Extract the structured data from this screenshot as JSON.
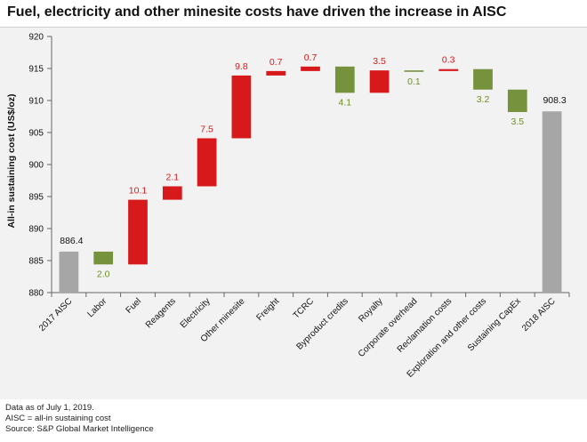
{
  "chart_data": {
    "type": "waterfall",
    "title": "Fuel, electricity and other minesite costs have driven the increase in AISC",
    "ylabel": "All-in sustaining cost (US$/oz)",
    "ylim": [
      880,
      920
    ],
    "yticks": [
      880,
      885,
      890,
      895,
      900,
      905,
      910,
      915,
      920
    ],
    "grid": false,
    "categories": [
      "2017 AISC",
      "Labor",
      "Fuel",
      "Reagents",
      "Electricity",
      "Other minesite",
      "Freight",
      "TCRC",
      "Byproduct credits",
      "Royalty",
      "Corporate overhead",
      "Reclamation costs",
      "Exploration and other costs",
      "Sustaining CapEx",
      "2018 AISC"
    ],
    "bars": [
      {
        "kind": "total",
        "start": 880,
        "end": 886.4,
        "label": "886.4"
      },
      {
        "kind": "decrease",
        "start": 886.4,
        "end": 884.4,
        "label": "2.0"
      },
      {
        "kind": "increase",
        "start": 884.4,
        "end": 894.5,
        "label": "10.1"
      },
      {
        "kind": "increase",
        "start": 894.5,
        "end": 896.6,
        "label": "2.1"
      },
      {
        "kind": "increase",
        "start": 896.6,
        "end": 904.1,
        "label": "7.5"
      },
      {
        "kind": "increase",
        "start": 904.1,
        "end": 913.9,
        "label": "9.8"
      },
      {
        "kind": "increase",
        "start": 913.9,
        "end": 914.6,
        "label": "0.7"
      },
      {
        "kind": "increase",
        "start": 914.6,
        "end": 915.3,
        "label": "0.7"
      },
      {
        "kind": "decrease",
        "start": 915.3,
        "end": 911.2,
        "label": "4.1"
      },
      {
        "kind": "increase",
        "start": 911.2,
        "end": 914.7,
        "label": "3.5"
      },
      {
        "kind": "decrease",
        "start": 914.7,
        "end": 914.6,
        "label": "0.1"
      },
      {
        "kind": "increase",
        "start": 914.6,
        "end": 914.9,
        "label": "0.3"
      },
      {
        "kind": "decrease",
        "start": 914.9,
        "end": 911.7,
        "label": "3.2"
      },
      {
        "kind": "decrease",
        "start": 911.7,
        "end": 908.2,
        "label": "3.5"
      },
      {
        "kind": "total",
        "start": 880,
        "end": 908.3,
        "label": "908.3"
      }
    ],
    "colors": {
      "increase": "#d7191c",
      "decrease": "#76923c",
      "total": "#a6a6a6",
      "increase_label": "#d7191c",
      "decrease_label": "#6b8e23",
      "total_label": "#111111"
    }
  },
  "footer": {
    "line1": "Data as of July 1, 2019.",
    "line2": "AISC = all-in sustaining cost",
    "line3": "Source: S&P Global Market Intelligence"
  }
}
